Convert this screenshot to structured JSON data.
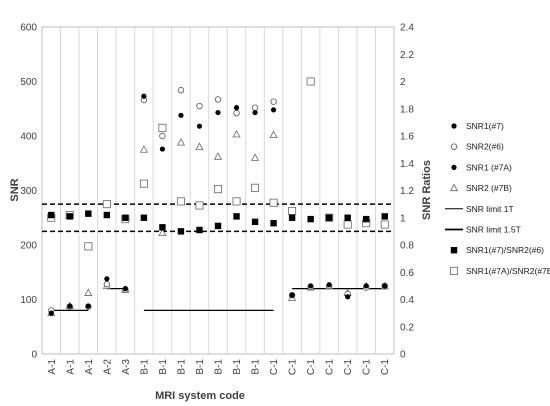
{
  "chart_data": {
    "type": "scatter",
    "xlabel": "MRI system code",
    "ylabel": "SNR",
    "y2label": "SNR Ratios",
    "ylim": [
      0,
      600
    ],
    "y2lim": [
      0,
      2.4
    ],
    "yticks": [
      0,
      100,
      200,
      300,
      400,
      500,
      600
    ],
    "y2ticks": [
      0,
      0.2,
      0.4,
      0.6,
      0.8,
      1.0,
      1.2,
      1.4,
      1.6,
      1.8,
      2.0,
      2.2,
      2.4
    ],
    "y2tick_labels": [
      "0",
      "0.2",
      "0.4",
      "0.6",
      "0.8",
      "1",
      "1.2",
      "1.4",
      "1.6",
      "1.8",
      "2",
      "2.2",
      "2.4"
    ],
    "categories": [
      "A-1",
      "A-1",
      "A-1",
      "A-2",
      "A-3",
      "B-1",
      "B-1",
      "B-1",
      "B-1",
      "B-1",
      "B-1",
      "B-1",
      "C-1",
      "C-1",
      "C-1",
      "C-1",
      "C-1",
      "C-1",
      "C-1"
    ],
    "grid": "vertical",
    "legend_position": "right",
    "series": [
      {
        "name": "SNR1(#7)",
        "axis": "left",
        "marker": "filled-circle",
        "values": [
          75,
          88,
          88,
          138,
          120,
          473,
          376,
          438,
          418,
          443,
          452,
          443,
          448,
          null,
          null,
          null,
          null,
          null,
          null
        ]
      },
      {
        "name": "SNR2(#6)",
        "axis": "left",
        "marker": "open-circle",
        "values": [
          80,
          87,
          87,
          128,
          118,
          466,
          400,
          484,
          455,
          467,
          442,
          452,
          463,
          108,
          123,
          125,
          110,
          122,
          125
        ]
      },
      {
        "name": "SNR1 (#7A)",
        "axis": "left",
        "marker": "filled-circle",
        "values": [
          null,
          null,
          null,
          null,
          null,
          null,
          null,
          null,
          null,
          null,
          null,
          null,
          null,
          108,
          125,
          127,
          105,
          125,
          125
        ]
      },
      {
        "name": "SNR2 (#7B)",
        "axis": "left",
        "marker": "open-triangle",
        "values": [
          75,
          88,
          112,
          125,
          118,
          375,
          222,
          388,
          380,
          362,
          403,
          360,
          402,
          103,
          122,
          124,
          112,
          124,
          124
        ]
      },
      {
        "name": "SNR1(#7)/SNR2(#6)",
        "axis": "right",
        "marker": "filled-square",
        "values": [
          1.02,
          1.01,
          1.03,
          1.02,
          1.0,
          1.0,
          0.93,
          0.9,
          0.91,
          0.94,
          1.01,
          0.97,
          0.96,
          1.0,
          0.99,
          1.0,
          1.0,
          0.99,
          1.01
        ]
      },
      {
        "name": "SNR1(#7A)/SNR2(#7B)",
        "axis": "right",
        "marker": "open-square",
        "values": [
          1.0,
          1.02,
          0.79,
          1.1,
          0.99,
          1.25,
          1.66,
          1.12,
          1.09,
          1.21,
          1.12,
          1.22,
          1.11,
          1.05,
          2.0,
          1.0,
          0.95,
          0.96,
          0.95
        ]
      }
    ],
    "reference_lines": [
      {
        "name": "SNR limit 1T",
        "axis": "left",
        "style": "solid",
        "from": 0,
        "to": 2,
        "y": 80
      },
      {
        "name": "SNR limit 1T",
        "axis": "left",
        "style": "solid",
        "from": 3,
        "to": 4,
        "y": 120
      },
      {
        "name": "SNR limit 1.5T",
        "axis": "left",
        "style": "solid",
        "from": 5,
        "to": 12,
        "y": 80
      },
      {
        "name": "SNR limit 1.5T",
        "axis": "left",
        "style": "solid",
        "from": 13,
        "to": 18,
        "y": 120
      },
      {
        "name": "dashed-upper",
        "axis": "right",
        "style": "dashed",
        "from": -0.5,
        "to": 18.5,
        "y": 1.1
      },
      {
        "name": "dashed-lower",
        "axis": "right",
        "style": "dashed",
        "from": -0.5,
        "to": 18.5,
        "y": 0.9
      }
    ],
    "legend_labels": [
      "SNR1(#7)",
      "SNR2(#6)",
      "SNR1 (#7A)",
      "SNR2 (#7B)",
      "SNR limit 1T",
      "SNR limit 1.5T",
      "SNR1(#7)/SNR2(#6)",
      "SNR1(#7A)/SNR2(#7B)"
    ]
  }
}
